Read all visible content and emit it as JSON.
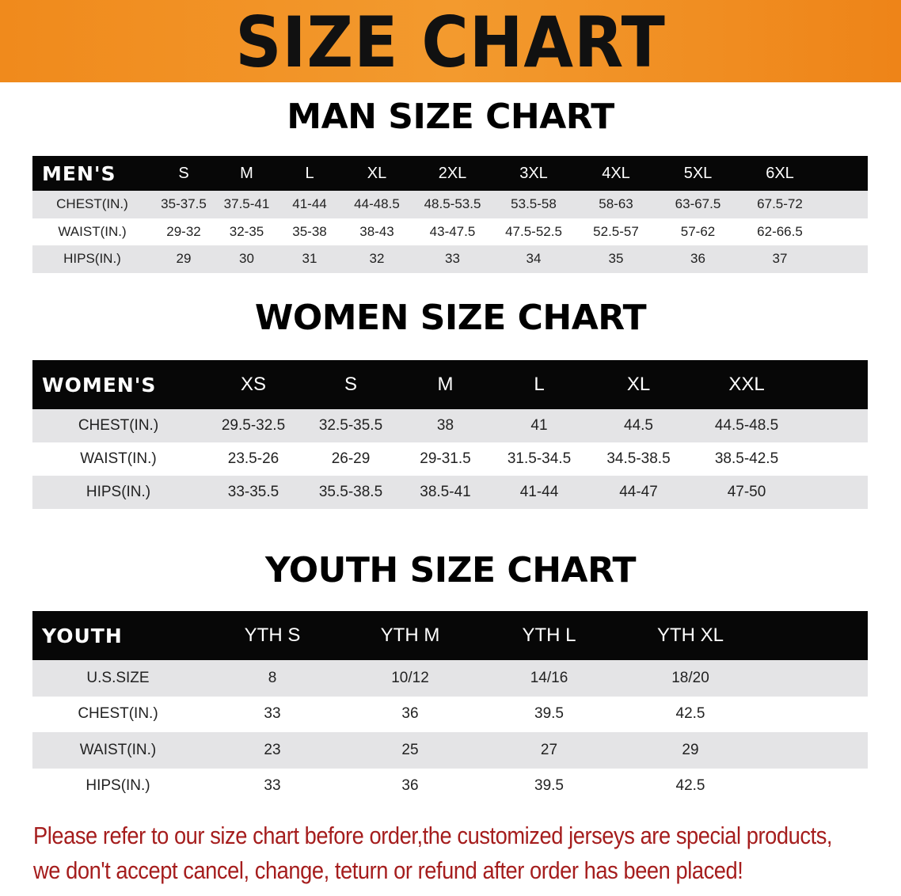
{
  "banner": {
    "title": "SIZE CHART"
  },
  "men": {
    "title": "MAN SIZE CHART",
    "header": [
      "MEN'S",
      "S",
      "M",
      "L",
      "XL",
      "2XL",
      "3XL",
      "4XL",
      "5XL",
      "6XL"
    ],
    "rows": [
      [
        "CHEST(IN.)",
        "35-37.5",
        "37.5-41",
        "41-44",
        "44-48.5",
        "48.5-53.5",
        "53.5-58",
        "58-63",
        "63-67.5",
        "67.5-72"
      ],
      [
        "WAIST(IN.)",
        "29-32",
        "32-35",
        "35-38",
        "38-43",
        "43-47.5",
        "47.5-52.5",
        "52.5-57",
        "57-62",
        "62-66.5"
      ],
      [
        "HIPS(IN.)",
        "29",
        "30",
        "31",
        "32",
        "33",
        "34",
        "35",
        "36",
        "37"
      ]
    ]
  },
  "women": {
    "title": "WOMEN SIZE CHART",
    "header": [
      "WOMEN'S",
      "XS",
      "S",
      "M",
      "L",
      "XL",
      "XXL"
    ],
    "rows": [
      [
        "CHEST(IN.)",
        "29.5-32.5",
        "32.5-35.5",
        "38",
        "41",
        "44.5",
        "44.5-48.5"
      ],
      [
        "WAIST(IN.)",
        "23.5-26",
        "26-29",
        "29-31.5",
        "31.5-34.5",
        "34.5-38.5",
        "38.5-42.5"
      ],
      [
        "HIPS(IN.)",
        "33-35.5",
        "35.5-38.5",
        "38.5-41",
        "41-44",
        "44-47",
        "47-50"
      ]
    ]
  },
  "youth": {
    "title": "YOUTH SIZE CHART",
    "header": [
      "YOUTH",
      "YTH S",
      "YTH M",
      "YTH L",
      "YTH XL"
    ],
    "rows": [
      [
        "U.S.SIZE",
        "8",
        "10/12",
        "14/16",
        "18/20"
      ],
      [
        "CHEST(IN.)",
        "33",
        "36",
        "39.5",
        "42.5"
      ],
      [
        "WAIST(IN.)",
        "23",
        "25",
        "27",
        "29"
      ],
      [
        "HIPS(IN.)",
        "33",
        "36",
        "39.5",
        "42.5"
      ]
    ]
  },
  "notice": {
    "line1": "Please refer to our size chart before order,the customized jerseys are special products,",
    "line2": "we don't accept cancel, change, teturn or refund after order has been placed!"
  },
  "colors": {
    "banner": "#f08a1c",
    "header_bg": "#070707",
    "stripe": "#e4e4e6",
    "notice": "#a51d1d"
  }
}
